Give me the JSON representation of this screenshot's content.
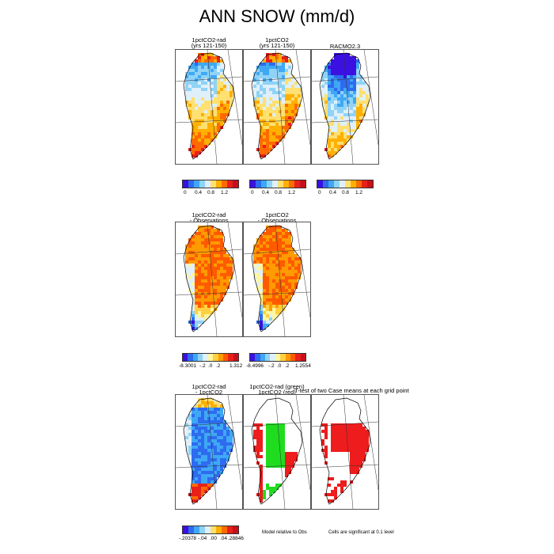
{
  "figure": {
    "title": "ANN SNOW (mm/d)"
  },
  "row1": {
    "panel_titles": [
      "1pctCO2-rad\n(yrs 121-150)",
      "1pctCO2\n(yrs 121-150)",
      "RACMO2.3"
    ],
    "colorbar_labels": [
      "0",
      "0.4",
      "0.8",
      "1.2"
    ],
    "colors": [
      "#3b10e0",
      "#2e6bf0",
      "#3fa8f5",
      "#8fd3f7",
      "#dff0fa",
      "#ffe070",
      "#ffb000",
      "#ff6a00",
      "#e8201a",
      "#c8101a"
    ]
  },
  "row2": {
    "panel_titles": [
      "1pctCO2-rad\n- Observations",
      "1pctCO2\n- Observations"
    ],
    "colorbar1_labels": [
      "-8.3001",
      "-.2",
      ".0",
      ".2",
      "1.312"
    ],
    "colorbar2_labels": [
      "-8.4996",
      "-.2",
      ".0",
      ".2",
      "1.2554"
    ],
    "colors": [
      "#3b10e0",
      "#2e6bf0",
      "#3fa8f5",
      "#8fd3f7",
      "#dff0fa",
      "#fff6a0",
      "#ffd040",
      "#ff9a00",
      "#ff5a00",
      "#e8201a",
      "#c8101a"
    ]
  },
  "row3": {
    "panel_titles": [
      "1pctCO2-rad\n- 1pctCO2",
      "1pctCO2-rad (green)\n1pctCO2 (red)",
      "T-test of two Case means at each grid point"
    ],
    "colorbar_labels": [
      "-.20378",
      "-.04",
      ".00",
      ".04",
      ".28846"
    ],
    "colors": [
      "#3b10e0",
      "#2e6bf0",
      "#3fa8f5",
      "#8fd3f7",
      "#dff0fa",
      "#ffe070",
      "#ffb000",
      "#ff6a00",
      "#e8201a",
      "#c8101a"
    ],
    "note_model": "Model relative to Obs",
    "note_sig": "Cells are significant at 0.1 level"
  },
  "chart_data": [
    {
      "type": "heatmap",
      "title": "1pctCO2-rad (yrs 121-150)",
      "colorbar_ticks": [
        0,
        0.4,
        0.8,
        1.2
      ]
    },
    {
      "type": "heatmap",
      "title": "1pctCO2 (yrs 121-150)",
      "colorbar_ticks": [
        0,
        0.4,
        0.8,
        1.2
      ]
    },
    {
      "type": "heatmap",
      "title": "RACMO2.3",
      "colorbar_ticks": [
        0,
        0.4,
        0.8,
        1.2
      ]
    },
    {
      "type": "heatmap",
      "title": "1pctCO2-rad - Observations",
      "colorbar_range": [
        -8.3001,
        1.312
      ],
      "colorbar_ticks": [
        -0.2,
        0.0,
        0.2
      ]
    },
    {
      "type": "heatmap",
      "title": "1pctCO2 - Observations",
      "colorbar_range": [
        -8.4996,
        1.2554
      ],
      "colorbar_ticks": [
        -0.2,
        0.0,
        0.2
      ]
    },
    {
      "type": "heatmap",
      "title": "1pctCO2-rad - 1pctCO2",
      "colorbar_range": [
        -0.20378,
        0.28846
      ],
      "colorbar_ticks": [
        -0.04,
        0.0,
        0.04
      ]
    },
    {
      "type": "heatmap",
      "title": "1pctCO2-rad (green) 1pctCO2 (red)"
    },
    {
      "type": "heatmap",
      "title": "T-test of two Case means at each grid point"
    }
  ]
}
